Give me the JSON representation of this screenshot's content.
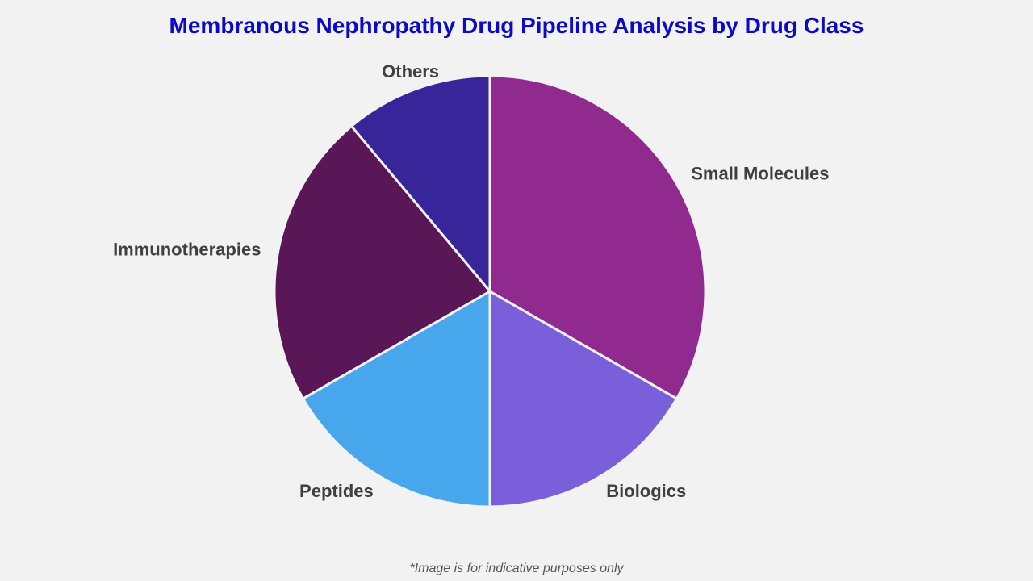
{
  "chart_data": {
    "type": "pie",
    "title": "Membranous Nephropathy Drug Pipeline Analysis by Drug Class",
    "slices": [
      {
        "label": "Small Molecules",
        "value": 33.3,
        "color": "#912a8e"
      },
      {
        "label": "Biologics",
        "value": 16.7,
        "color": "#7a5fdb"
      },
      {
        "label": "Peptides",
        "value": 16.7,
        "color": "#47a6ec"
      },
      {
        "label": "Immunotherapies",
        "value": 22.2,
        "color": "#591757"
      },
      {
        "label": "Others",
        "value": 11.1,
        "color": "#382599"
      }
    ],
    "start_angle": "12 o'clock",
    "direction": "clockwise",
    "legend": "none"
  },
  "footnote": "*Image is for indicative purposes only"
}
